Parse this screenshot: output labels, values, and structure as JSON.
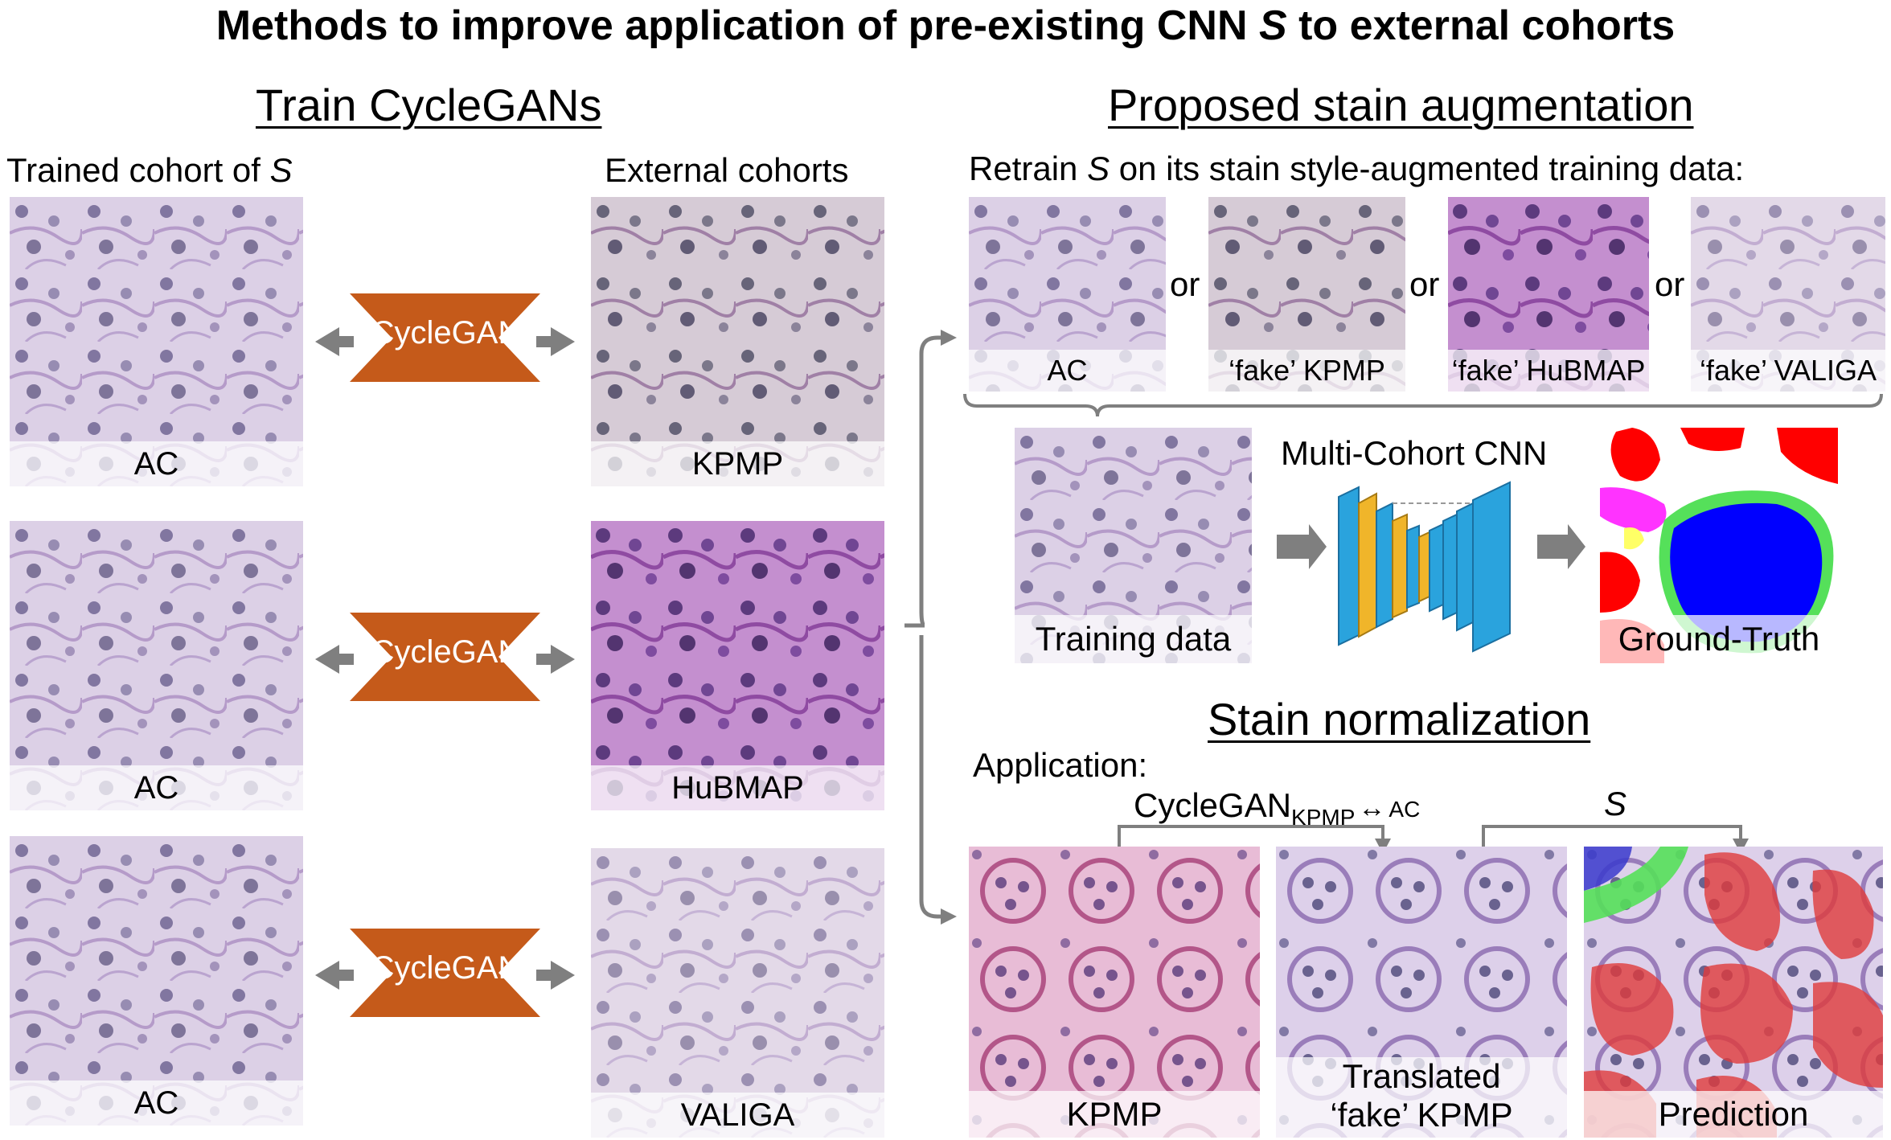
{
  "title": {
    "prefix": "Methods to improve application of pre-existing CNN ",
    "italic": "S",
    "suffix": " to external cohorts"
  },
  "left": {
    "heading": "Train CycleGANs",
    "trained_label_prefix": "Trained cohort of ",
    "trained_label_italic": "S",
    "external_label": "External cohorts",
    "rows": [
      {
        "left": "AC",
        "right": "KPMP",
        "gan": "CycleGAN"
      },
      {
        "left": "AC",
        "right": "HuBMAP",
        "gan": "CycleGAN"
      },
      {
        "left": "AC",
        "right": "VALIGA",
        "gan": "CycleGAN"
      }
    ]
  },
  "augment": {
    "heading": "Proposed stain augmentation",
    "subtitle_prefix": "Retrain ",
    "subtitle_italic": "S",
    "subtitle_suffix": " on its stain style-augmented training data:",
    "tiles": [
      "AC",
      "‘fake’ KPMP",
      "‘fake’ HuBMAP",
      "‘fake’ VALIGA"
    ],
    "or": "or",
    "training_data": "Training data",
    "cnn_label": "Multi-Cohort CNN",
    "ground_truth": "Ground-Truth"
  },
  "norm": {
    "heading": "Stain normalization",
    "application": "Application:",
    "gan_label": "CycleGAN",
    "gan_sub": "KPMP",
    "gan_arrow": "↔",
    "gan_ac": "AC",
    "s_label": "S",
    "tiles": [
      {
        "line1": "KPMP",
        "line2": ""
      },
      {
        "line1": "Translated",
        "line2": "‘fake’ KPMP"
      },
      {
        "line1": "Prediction",
        "line2": ""
      }
    ]
  },
  "colors": {
    "cyclegan": "#c55a1a",
    "arrow_gray": "#7f7f7f",
    "gt_red": "#ff0000",
    "gt_blue": "#0000ff",
    "gt_green": "#55e05a",
    "gt_magenta": "#ff33ff",
    "cnn_blue": "#2aa3dd",
    "cnn_yellow": "#f0b52a"
  }
}
